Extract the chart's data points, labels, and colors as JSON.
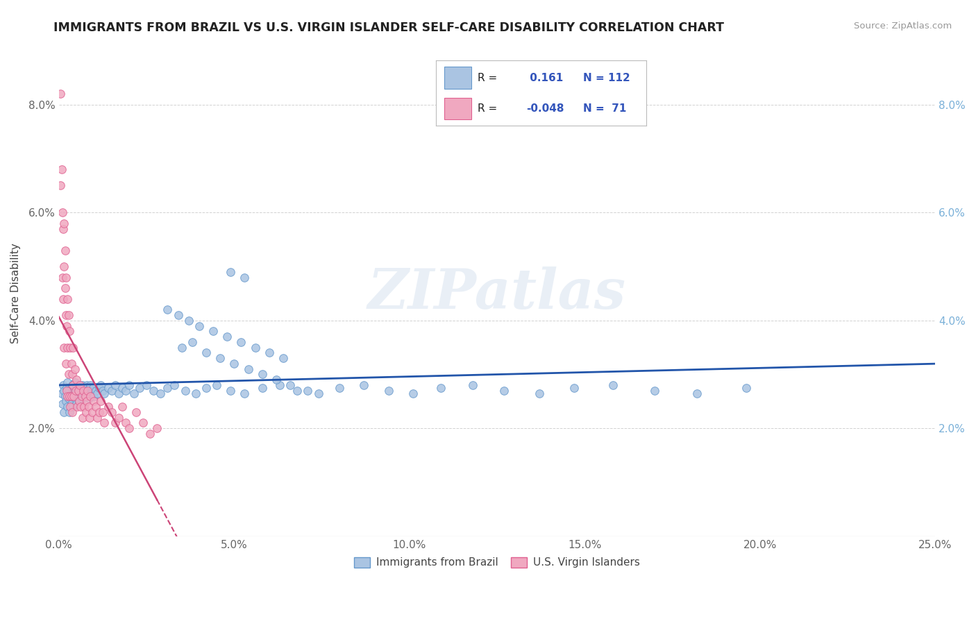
{
  "title": "IMMIGRANTS FROM BRAZIL VS U.S. VIRGIN ISLANDER SELF-CARE DISABILITY CORRELATION CHART",
  "source": "Source: ZipAtlas.com",
  "ylabel": "Self-Care Disability",
  "xlim": [
    0.0,
    0.25
  ],
  "ylim": [
    0.0,
    0.09
  ],
  "xticks": [
    0.0,
    0.05,
    0.1,
    0.15,
    0.2,
    0.25
  ],
  "xtick_labels": [
    "0.0%",
    "5.0%",
    "10.0%",
    "15.0%",
    "20.0%",
    "25.0%"
  ],
  "yticks": [
    0.0,
    0.02,
    0.04,
    0.06,
    0.08
  ],
  "ytick_labels": [
    "",
    "2.0%",
    "4.0%",
    "6.0%",
    "8.0%"
  ],
  "blue_color": "#aac4e2",
  "pink_color": "#f0a8c0",
  "blue_edge": "#6699cc",
  "pink_edge": "#e06090",
  "trend_blue": "#2255aa",
  "trend_pink": "#cc4477",
  "R_blue": 0.161,
  "N_blue": 112,
  "R_pink": -0.048,
  "N_pink": 71,
  "legend_label_blue": "Immigrants from Brazil",
  "legend_label_pink": "U.S. Virgin Islanders",
  "watermark_text": "ZIPatlas",
  "background_color": "#ffffff",
  "grid_color": "#cccccc",
  "blue_scatter_x": [
    0.0008,
    0.001,
    0.0012,
    0.0015,
    0.0015,
    0.0018,
    0.002,
    0.0022,
    0.0025,
    0.0025,
    0.0028,
    0.003,
    0.003,
    0.0032,
    0.0035,
    0.0035,
    0.0038,
    0.004,
    0.004,
    0.0042,
    0.0045,
    0.0045,
    0.0048,
    0.005,
    0.005,
    0.0052,
    0.0055,
    0.0055,
    0.0058,
    0.006,
    0.006,
    0.0062,
    0.0065,
    0.0068,
    0.007,
    0.0072,
    0.0075,
    0.0078,
    0.008,
    0.0082,
    0.0085,
    0.0088,
    0.009,
    0.0092,
    0.0095,
    0.0098,
    0.01,
    0.0105,
    0.011,
    0.0115,
    0.012,
    0.0125,
    0.013,
    0.014,
    0.015,
    0.016,
    0.017,
    0.018,
    0.019,
    0.02,
    0.0215,
    0.023,
    0.025,
    0.027,
    0.029,
    0.031,
    0.033,
    0.036,
    0.039,
    0.042,
    0.045,
    0.049,
    0.053,
    0.058,
    0.063,
    0.068,
    0.074,
    0.08,
    0.087,
    0.094,
    0.101,
    0.109,
    0.118,
    0.127,
    0.137,
    0.147,
    0.158,
    0.17,
    0.182,
    0.196,
    0.035,
    0.038,
    0.042,
    0.046,
    0.05,
    0.054,
    0.058,
    0.062,
    0.066,
    0.071,
    0.049,
    0.053,
    0.031,
    0.034,
    0.037,
    0.04,
    0.044,
    0.048,
    0.052,
    0.056,
    0.06,
    0.064
  ],
  "blue_scatter_y": [
    0.0265,
    0.0245,
    0.028,
    0.023,
    0.027,
    0.026,
    0.025,
    0.0275,
    0.024,
    0.0285,
    0.0255,
    0.027,
    0.023,
    0.026,
    0.0275,
    0.0245,
    0.028,
    0.0265,
    0.024,
    0.027,
    0.0255,
    0.0285,
    0.026,
    0.0245,
    0.028,
    0.027,
    0.026,
    0.0275,
    0.025,
    0.028,
    0.0265,
    0.027,
    0.0255,
    0.028,
    0.0265,
    0.0275,
    0.026,
    0.027,
    0.028,
    0.0265,
    0.0255,
    0.0275,
    0.028,
    0.0265,
    0.027,
    0.0275,
    0.026,
    0.027,
    0.0265,
    0.0275,
    0.028,
    0.027,
    0.0265,
    0.0275,
    0.027,
    0.028,
    0.0265,
    0.0275,
    0.027,
    0.028,
    0.0265,
    0.0275,
    0.028,
    0.027,
    0.0265,
    0.0275,
    0.028,
    0.027,
    0.0265,
    0.0275,
    0.028,
    0.027,
    0.0265,
    0.0275,
    0.028,
    0.027,
    0.0265,
    0.0275,
    0.028,
    0.027,
    0.0265,
    0.0275,
    0.028,
    0.027,
    0.0265,
    0.0275,
    0.028,
    0.027,
    0.0265,
    0.0275,
    0.035,
    0.036,
    0.034,
    0.033,
    0.032,
    0.031,
    0.03,
    0.029,
    0.028,
    0.027,
    0.049,
    0.048,
    0.042,
    0.041,
    0.04,
    0.039,
    0.038,
    0.037,
    0.036,
    0.035,
    0.034,
    0.033
  ],
  "pink_scatter_x": [
    0.0005,
    0.0005,
    0.0008,
    0.001,
    0.001,
    0.0012,
    0.0012,
    0.0015,
    0.0015,
    0.0015,
    0.0018,
    0.0018,
    0.002,
    0.002,
    0.002,
    0.0022,
    0.0022,
    0.0025,
    0.0025,
    0.0025,
    0.0028,
    0.0028,
    0.003,
    0.003,
    0.0032,
    0.0032,
    0.0035,
    0.0035,
    0.0038,
    0.0038,
    0.004,
    0.004,
    0.0042,
    0.0045,
    0.0048,
    0.005,
    0.0052,
    0.0055,
    0.0058,
    0.006,
    0.0062,
    0.0065,
    0.0068,
    0.007,
    0.0072,
    0.0075,
    0.0078,
    0.008,
    0.0082,
    0.0085,
    0.0088,
    0.009,
    0.0095,
    0.01,
    0.0105,
    0.011,
    0.0115,
    0.012,
    0.0125,
    0.013,
    0.014,
    0.015,
    0.016,
    0.017,
    0.018,
    0.019,
    0.02,
    0.022,
    0.024,
    0.026,
    0.028
  ],
  "pink_scatter_y": [
    0.082,
    0.065,
    0.068,
    0.06,
    0.048,
    0.057,
    0.044,
    0.05,
    0.058,
    0.035,
    0.046,
    0.053,
    0.041,
    0.032,
    0.048,
    0.039,
    0.027,
    0.044,
    0.035,
    0.026,
    0.041,
    0.03,
    0.038,
    0.026,
    0.035,
    0.024,
    0.032,
    0.026,
    0.03,
    0.023,
    0.035,
    0.028,
    0.026,
    0.031,
    0.027,
    0.029,
    0.024,
    0.027,
    0.025,
    0.028,
    0.024,
    0.026,
    0.022,
    0.027,
    0.024,
    0.026,
    0.023,
    0.025,
    0.027,
    0.024,
    0.022,
    0.026,
    0.023,
    0.025,
    0.024,
    0.022,
    0.023,
    0.025,
    0.023,
    0.021,
    0.024,
    0.023,
    0.021,
    0.022,
    0.024,
    0.021,
    0.02,
    0.023,
    0.021,
    0.019,
    0.02
  ]
}
